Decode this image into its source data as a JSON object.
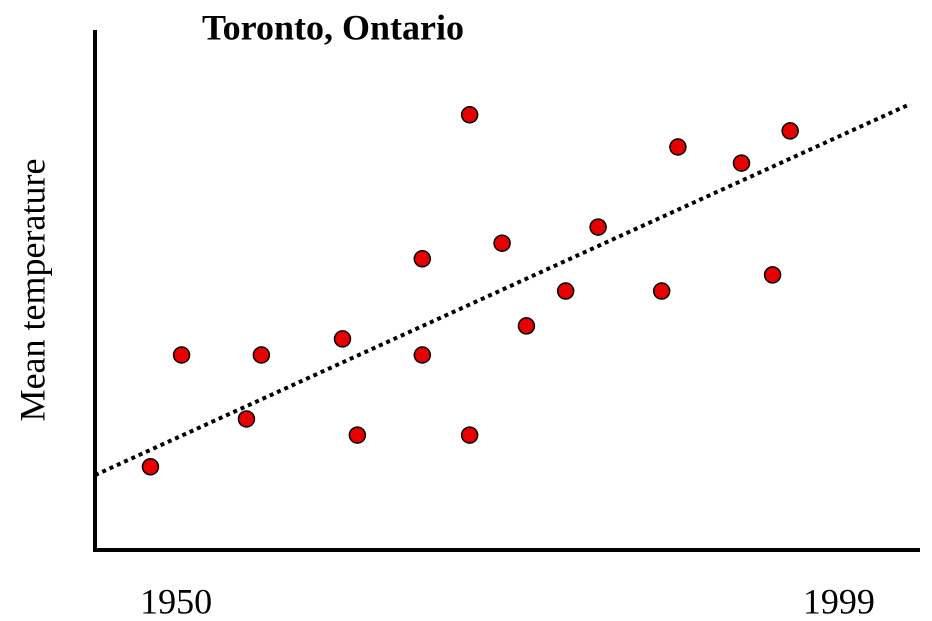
{
  "chart_data": {
    "type": "scatter",
    "title": "Toronto, Ontario",
    "ylabel": "Mean temperature",
    "x": [
      1948.1,
      1950.4,
      1955.2,
      1956.3,
      1962.3,
      1963.4,
      1968.2,
      1968.2,
      1971.7,
      1971.7,
      1974.1,
      1975.9,
      1978.8,
      1981.2,
      1985.9,
      1987.1,
      1991.8,
      1994.1,
      1995.4
    ],
    "values": [
      16,
      37.5,
      25.2,
      37.5,
      40.6,
      22.1,
      56,
      37.5,
      83.7,
      22.1,
      59,
      43.1,
      49.8,
      62.1,
      49.8,
      77.5,
      74.4,
      52.9,
      80.6
    ],
    "color": "#e60000",
    "trend": {
      "x": [
        1944,
        2004.3
      ],
      "values": [
        14.4,
        85.8
      ]
    },
    "xlim": [
      1944,
      2005
    ],
    "xticks": [
      1950,
      1999
    ],
    "ylim": [
      0,
      100
    ],
    "grid": false
  }
}
